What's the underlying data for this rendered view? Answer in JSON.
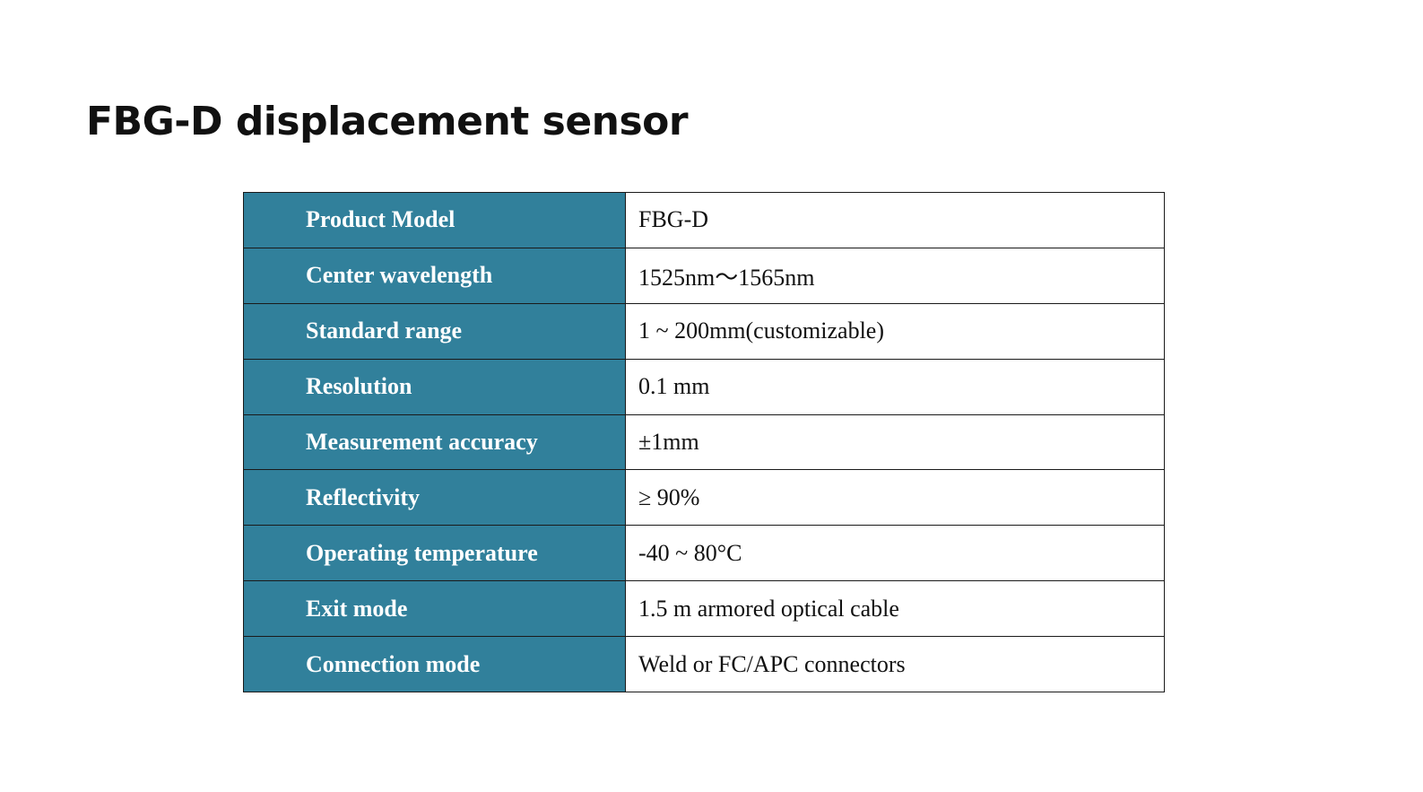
{
  "title": "FBG-D displacement sensor",
  "colors": {
    "label_background": "#31809b",
    "label_text": "#ffffff",
    "value_text": "#111111",
    "border": "#1a1a1a"
  },
  "specs": [
    {
      "label": "Product Model",
      "value": "FBG-D"
    },
    {
      "label": "Center wavelength",
      "value": "1525nm～1565nm"
    },
    {
      "label": "Standard range",
      "value": "1 ~ 200mm(customizable)"
    },
    {
      "label": "Resolution",
      "value": "0.1 mm"
    },
    {
      "label": "Measurement accuracy",
      "value": "±1mm"
    },
    {
      "label": "Reflectivity",
      "value": "≥ 90%"
    },
    {
      "label": "Operating temperature",
      "value": "-40 ~ 80°C"
    },
    {
      "label": "Exit mode",
      "value": "1.5 m armored optical cable"
    },
    {
      "label": "Connection mode",
      "value": "Weld or FC/APC connectors"
    }
  ]
}
